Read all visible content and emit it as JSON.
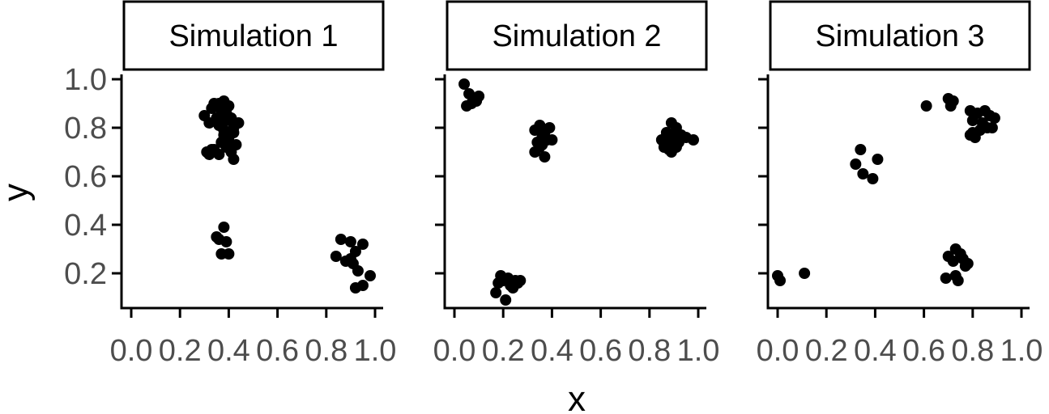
{
  "chart_data": {
    "type": "scatter",
    "xlabel": "x",
    "ylabel": "y",
    "xlim": [
      0,
      1
    ],
    "ylim": [
      0.08,
      1.02
    ],
    "x_ticks": [
      "0.0",
      "0.2",
      "0.4",
      "0.6",
      "0.8",
      "1.0"
    ],
    "y_ticks": [
      "0.2",
      "0.4",
      "0.6",
      "0.8",
      "1.0"
    ],
    "point_color": "#000000",
    "grid": false,
    "panels": [
      {
        "title": "Simulation 1",
        "points": [
          [
            0.3,
            0.85
          ],
          [
            0.32,
            0.82
          ],
          [
            0.33,
            0.88
          ],
          [
            0.34,
            0.9
          ],
          [
            0.35,
            0.84
          ],
          [
            0.36,
            0.9
          ],
          [
            0.37,
            0.87
          ],
          [
            0.38,
            0.91
          ],
          [
            0.39,
            0.86
          ],
          [
            0.4,
            0.89
          ],
          [
            0.41,
            0.84
          ],
          [
            0.42,
            0.8
          ],
          [
            0.44,
            0.82
          ],
          [
            0.36,
            0.81
          ],
          [
            0.38,
            0.79
          ],
          [
            0.4,
            0.76
          ],
          [
            0.42,
            0.78
          ],
          [
            0.37,
            0.74
          ],
          [
            0.39,
            0.72
          ],
          [
            0.41,
            0.7
          ],
          [
            0.43,
            0.73
          ],
          [
            0.36,
            0.69
          ],
          [
            0.33,
            0.71
          ],
          [
            0.31,
            0.7
          ],
          [
            0.32,
            0.69
          ],
          [
            0.42,
            0.67
          ],
          [
            0.38,
            0.77
          ],
          [
            0.4,
            0.73
          ],
          [
            0.34,
            0.71
          ],
          [
            0.39,
            0.83
          ],
          [
            0.35,
            0.35
          ],
          [
            0.38,
            0.39
          ],
          [
            0.36,
            0.34
          ],
          [
            0.39,
            0.33
          ],
          [
            0.37,
            0.28
          ],
          [
            0.4,
            0.28
          ],
          [
            0.86,
            0.34
          ],
          [
            0.9,
            0.33
          ],
          [
            0.95,
            0.32
          ],
          [
            0.84,
            0.27
          ],
          [
            0.92,
            0.29
          ],
          [
            0.88,
            0.25
          ],
          [
            0.91,
            0.24
          ],
          [
            0.93,
            0.21
          ],
          [
            0.98,
            0.19
          ],
          [
            0.95,
            0.15
          ],
          [
            0.92,
            0.14
          ],
          [
            0.9,
            0.26
          ]
        ]
      },
      {
        "title": "Simulation 2",
        "points": [
          [
            0.04,
            0.98
          ],
          [
            0.06,
            0.94
          ],
          [
            0.08,
            0.92
          ],
          [
            0.1,
            0.93
          ],
          [
            0.07,
            0.9
          ],
          [
            0.05,
            0.89
          ],
          [
            0.09,
            0.91
          ],
          [
            0.35,
            0.81
          ],
          [
            0.37,
            0.78
          ],
          [
            0.39,
            0.8
          ],
          [
            0.33,
            0.79
          ],
          [
            0.36,
            0.76
          ],
          [
            0.34,
            0.74
          ],
          [
            0.38,
            0.75
          ],
          [
            0.4,
            0.75
          ],
          [
            0.35,
            0.72
          ],
          [
            0.33,
            0.7
          ],
          [
            0.37,
            0.68
          ],
          [
            0.36,
            0.73
          ],
          [
            0.89,
            0.82
          ],
          [
            0.91,
            0.8
          ],
          [
            0.87,
            0.78
          ],
          [
            0.93,
            0.77
          ],
          [
            0.89,
            0.77
          ],
          [
            0.85,
            0.75
          ],
          [
            0.95,
            0.76
          ],
          [
            0.98,
            0.75
          ],
          [
            0.87,
            0.74
          ],
          [
            0.9,
            0.73
          ],
          [
            0.86,
            0.72
          ],
          [
            0.88,
            0.71
          ],
          [
            0.91,
            0.72
          ],
          [
            0.89,
            0.7
          ],
          [
            0.92,
            0.74
          ],
          [
            0.88,
            0.76
          ],
          [
            0.19,
            0.19
          ],
          [
            0.22,
            0.18
          ],
          [
            0.25,
            0.17
          ],
          [
            0.27,
            0.17
          ],
          [
            0.18,
            0.16
          ],
          [
            0.23,
            0.15
          ],
          [
            0.26,
            0.16
          ],
          [
            0.24,
            0.14
          ],
          [
            0.17,
            0.12
          ],
          [
            0.21,
            0.09
          ],
          [
            0.2,
            0.17
          ]
        ]
      },
      {
        "title": "Simulation 3",
        "points": [
          [
            0.0,
            0.19
          ],
          [
            0.01,
            0.17
          ],
          [
            0.11,
            0.2
          ],
          [
            0.34,
            0.71
          ],
          [
            0.41,
            0.67
          ],
          [
            0.32,
            0.65
          ],
          [
            0.35,
            0.61
          ],
          [
            0.39,
            0.59
          ],
          [
            0.61,
            0.89
          ],
          [
            0.7,
            0.92
          ],
          [
            0.71,
            0.89
          ],
          [
            0.72,
            0.91
          ],
          [
            0.79,
            0.87
          ],
          [
            0.82,
            0.86
          ],
          [
            0.85,
            0.87
          ],
          [
            0.87,
            0.85
          ],
          [
            0.89,
            0.84
          ],
          [
            0.8,
            0.83
          ],
          [
            0.84,
            0.82
          ],
          [
            0.86,
            0.8
          ],
          [
            0.83,
            0.79
          ],
          [
            0.88,
            0.8
          ],
          [
            0.8,
            0.78
          ],
          [
            0.79,
            0.77
          ],
          [
            0.81,
            0.76
          ],
          [
            0.7,
            0.27
          ],
          [
            0.73,
            0.3
          ],
          [
            0.75,
            0.28
          ],
          [
            0.76,
            0.26
          ],
          [
            0.72,
            0.25
          ],
          [
            0.77,
            0.23
          ],
          [
            0.73,
            0.19
          ],
          [
            0.74,
            0.17
          ],
          [
            0.69,
            0.18
          ],
          [
            0.78,
            0.24
          ]
        ]
      }
    ]
  }
}
